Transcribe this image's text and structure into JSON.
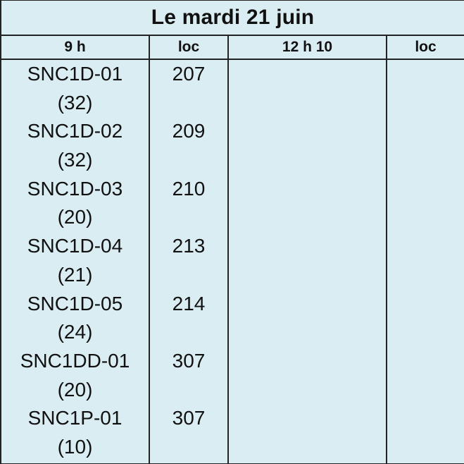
{
  "title": "Le mardi 21 juin",
  "headers": {
    "time1": "9 h",
    "loc1": "loc",
    "time2": "12 h 10",
    "loc2": "loc"
  },
  "entries": [
    {
      "course": "SNC1D-01",
      "count": "(32)",
      "room": "207"
    },
    {
      "course": "SNC1D-02",
      "count": "(32)",
      "room": "209"
    },
    {
      "course": "SNC1D-03",
      "count": "(20)",
      "room": "210"
    },
    {
      "course": "SNC1D-04",
      "count": "(21)",
      "room": "213"
    },
    {
      "course": "SNC1D-05",
      "count": "(24)",
      "room": "214"
    },
    {
      "course": "SNC1DD-01",
      "count": "(20)",
      "room": "307"
    },
    {
      "course": "SNC1P-01",
      "count": "(10)",
      "room": "307"
    }
  ],
  "colors": {
    "cell_background": "#daedf3",
    "border": "#222222"
  }
}
